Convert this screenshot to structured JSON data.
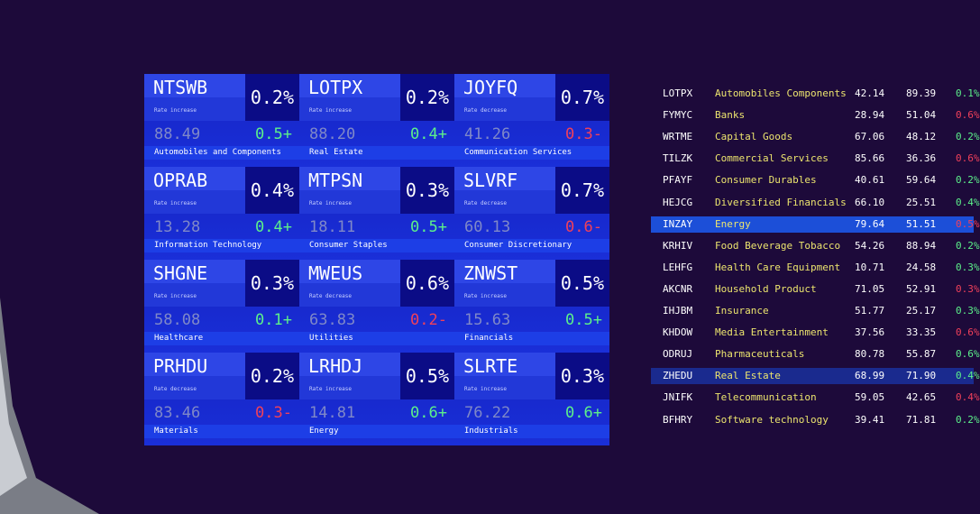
{
  "tiles": [
    {
      "ticker": "NTSWB",
      "percent": "0.2%",
      "rate_label": "Rate increase",
      "price": "88.49",
      "change": "0.5+",
      "sector": "Automobiles and Components",
      "change_color": "#5cf08a"
    },
    {
      "ticker": "LOTPX",
      "percent": "0.2%",
      "rate_label": "Rate increase",
      "price": "88.20",
      "change": "0.4+",
      "sector": "Real Estate",
      "change_color": "#5cf08a"
    },
    {
      "ticker": "JOYFQ",
      "percent": "0.7%",
      "rate_label": "Rate decrease",
      "price": "41.26",
      "change": "0.3-",
      "sector": "Communication Services",
      "change_color": "#f0405a"
    },
    {
      "ticker": "OPRAB",
      "percent": "0.4%",
      "rate_label": "Rate increase",
      "price": "13.28",
      "change": "0.4+",
      "sector": "Information Technology",
      "change_color": "#5cf08a"
    },
    {
      "ticker": "MTPSN",
      "percent": "0.3%",
      "rate_label": "Rate increase",
      "price": "18.11",
      "change": "0.5+",
      "sector": "Consumer Staples",
      "change_color": "#5cf08a"
    },
    {
      "ticker": "SLVRF",
      "percent": "0.7%",
      "rate_label": "Rate decrease",
      "price": "60.13",
      "change": "0.6-",
      "sector": "Consumer Discretionary",
      "change_color": "#f0405a"
    },
    {
      "ticker": "SHGNE",
      "percent": "0.3%",
      "rate_label": "Rate increase",
      "price": "58.08",
      "change": "0.1+",
      "sector": "Healthcare",
      "change_color": "#5cf08a"
    },
    {
      "ticker": "MWEUS",
      "percent": "0.6%",
      "rate_label": "Rate decrease",
      "price": "63.83",
      "change": "0.2-",
      "sector": "Utilities",
      "change_color": "#f0405a"
    },
    {
      "ticker": "ZNWST",
      "percent": "0.5%",
      "rate_label": "Rate increase",
      "price": "15.63",
      "change": "0.5+",
      "sector": "Financials",
      "change_color": "#5cf08a"
    },
    {
      "ticker": "PRHDU",
      "percent": "0.2%",
      "rate_label": "Rate decrease",
      "price": "83.46",
      "change": "0.3-",
      "sector": "Materials",
      "change_color": "#f0405a"
    },
    {
      "ticker": "LRHDJ",
      "percent": "0.5%",
      "rate_label": "Rate increase",
      "price": "14.81",
      "change": "0.6+",
      "sector": "Energy",
      "change_color": "#5cf08a"
    },
    {
      "ticker": "SLRTE",
      "percent": "0.3%",
      "rate_label": "Rate increase",
      "price": "76.22",
      "change": "0.6+",
      "sector": "Industrials",
      "change_color": "#5cf08a"
    }
  ],
  "table": {
    "rows": [
      {
        "ticker": "LOTPX",
        "sector": "Automobiles Components",
        "value_1": "42.14",
        "value_2": "89.39",
        "percent": "0.1%",
        "color": "#5cf08a"
      },
      {
        "ticker": "FYMYC",
        "sector": "Banks",
        "value_1": "28.94",
        "value_2": "51.04",
        "percent": "0.6%",
        "color": "#f0405a"
      },
      {
        "ticker": "WRTME",
        "sector": "Capital Goods",
        "value_1": "67.06",
        "value_2": "48.12",
        "percent": "0.2%",
        "color": "#5cf08a"
      },
      {
        "ticker": "TILZK",
        "sector": "Commercial Services",
        "value_1": "85.66",
        "value_2": "36.36",
        "percent": "0.6%",
        "color": "#f0405a"
      },
      {
        "ticker": "PFAYF",
        "sector": "Consumer Durables",
        "value_1": "40.61",
        "value_2": "59.64",
        "percent": "0.2%",
        "color": "#5cf08a"
      },
      {
        "ticker": "HEJCG",
        "sector": "Diversified Financials",
        "value_1": "66.10",
        "value_2": "25.51",
        "percent": "0.4%",
        "color": "#5cf08a"
      },
      {
        "ticker": "INZAY",
        "sector": "Energy",
        "value_1": "79.64",
        "value_2": "51.51",
        "percent": "0.5%",
        "color": "#f0405a",
        "highlight": "#1c4fd8"
      },
      {
        "ticker": "KRHIV",
        "sector": "Food Beverage Tobacco",
        "value_1": "54.26",
        "value_2": "88.94",
        "percent": "0.2%",
        "color": "#5cf08a"
      },
      {
        "ticker": "LEHFG",
        "sector": "Health Care Equipment",
        "value_1": "10.71",
        "value_2": "24.58",
        "percent": "0.3%",
        "color": "#5cf08a"
      },
      {
        "ticker": "AKCNR",
        "sector": "Household Product",
        "value_1": "71.05",
        "value_2": "52.91",
        "percent": "0.3%",
        "color": "#f0405a"
      },
      {
        "ticker": "IHJBM",
        "sector": "Insurance",
        "value_1": "51.77",
        "value_2": "25.17",
        "percent": "0.3%",
        "color": "#5cf08a"
      },
      {
        "ticker": "KHDOW",
        "sector": "Media Entertainment",
        "value_1": "37.56",
        "value_2": "33.35",
        "percent": "0.6%",
        "color": "#f0405a"
      },
      {
        "ticker": "ODRUJ",
        "sector": "Pharmaceuticals",
        "value_1": "80.78",
        "value_2": "55.87",
        "percent": "0.6%",
        "color": "#5cf08a"
      },
      {
        "ticker": "ZHEDU",
        "sector": "Real Estate",
        "value_1": "68.99",
        "value_2": "71.90",
        "percent": "0.4%",
        "color": "#5cf08a",
        "highlight": "#1a2a8e"
      },
      {
        "ticker": "JNIFK",
        "sector": "Telecommunication",
        "value_1": "59.05",
        "value_2": "42.65",
        "percent": "0.4%",
        "color": "#f0405a"
      },
      {
        "ticker": "BFHRY",
        "sector": "Software technology",
        "value_1": "39.41",
        "value_2": "71.81",
        "percent": "0.2%",
        "color": "#5cf08a"
      }
    ]
  }
}
